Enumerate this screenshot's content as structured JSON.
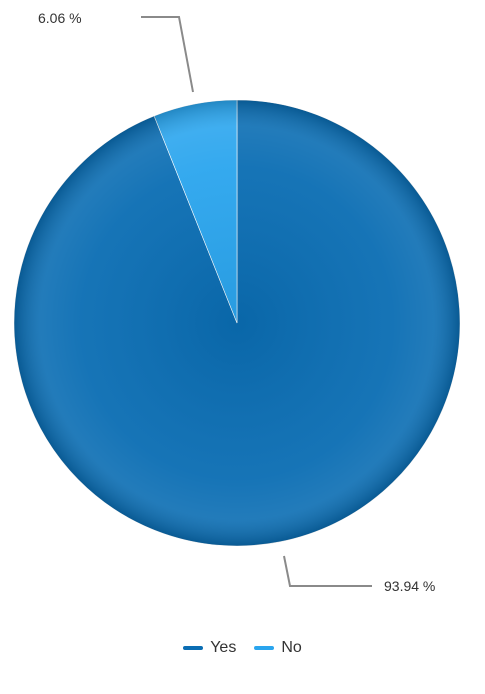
{
  "chart_data": {
    "type": "pie",
    "categories": [
      "Yes",
      "No"
    ],
    "values": [
      93.94,
      6.06
    ],
    "value_labels": [
      "93.94 %",
      "6.06 %"
    ],
    "colors": [
      "#0a6db3",
      "#2aa5ee"
    ],
    "legend": [
      "Yes",
      "No"
    ],
    "legend_position": "bottom-center"
  }
}
